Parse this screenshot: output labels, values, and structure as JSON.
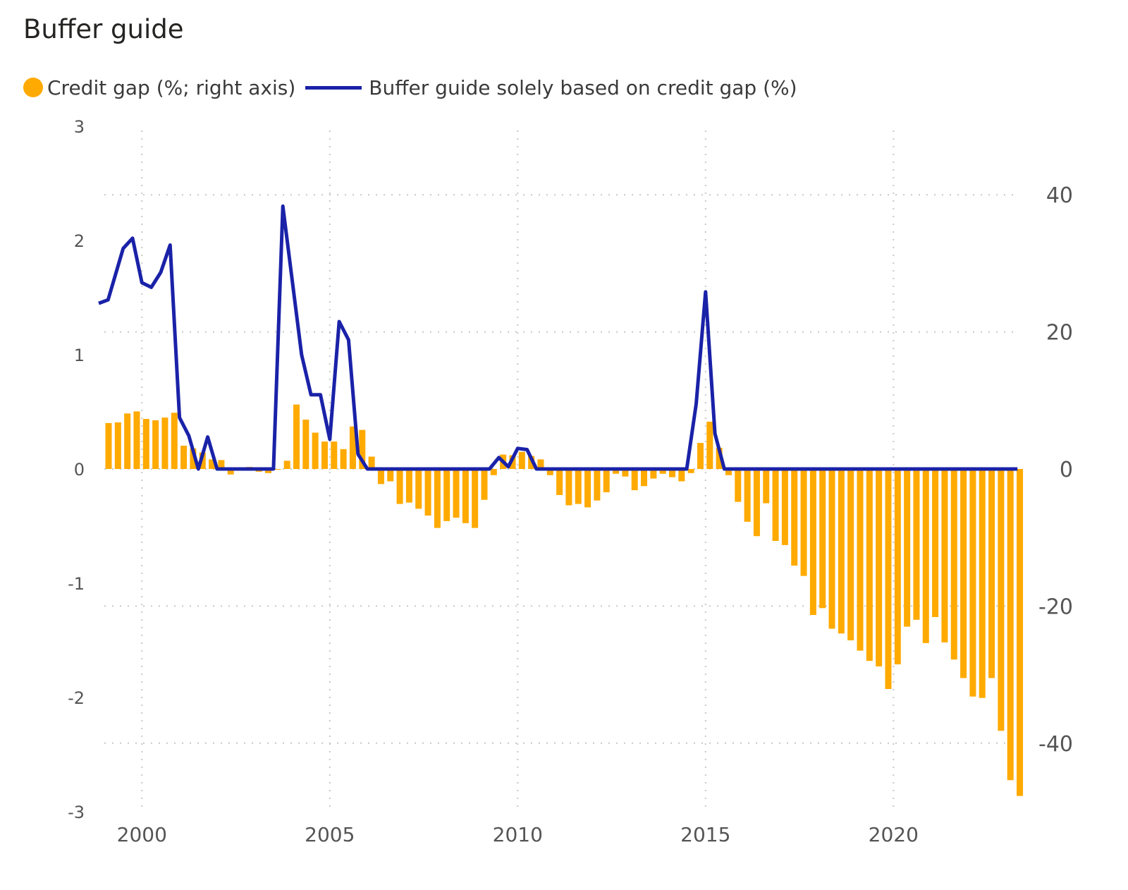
{
  "title": "Buffer guide",
  "legend": {
    "bar_label": "Credit gap (%; right axis)",
    "line_label": "Buffer guide solely based on credit gap (%)"
  },
  "colors": {
    "bar": "#FFAA00",
    "line": "#1A22A8",
    "grid": "#C8C8C8",
    "tick": "#555555"
  },
  "chart_data": {
    "type": "bar+line",
    "title": "Buffer guide",
    "x_ticks": [
      2000,
      2005,
      2010,
      2015,
      2020
    ],
    "x_range": [
      1998.85,
      2023.45
    ],
    "left_axis": {
      "ticks": [
        3,
        2,
        1,
        0,
        -1,
        -2,
        -3
      ],
      "range": [
        -3,
        3
      ]
    },
    "right_axis": {
      "ticks": [
        40,
        20,
        0,
        -20,
        -40
      ],
      "range": [
        -50,
        50
      ]
    },
    "series": [
      {
        "name": "Credit gap (%; right axis)",
        "type": "bar",
        "axis": "right",
        "x": [
          1999.0,
          1999.25,
          1999.5,
          1999.75,
          2000.0,
          2000.25,
          2000.5,
          2000.75,
          2001.0,
          2001.25,
          2001.5,
          2001.75,
          2002.0,
          2002.25,
          2002.5,
          2002.75,
          2003.0,
          2003.25,
          2003.5,
          2003.75,
          2004.0,
          2004.25,
          2004.5,
          2004.75,
          2005.0,
          2005.25,
          2005.5,
          2005.75,
          2006.0,
          2006.25,
          2006.5,
          2006.75,
          2007.0,
          2007.25,
          2007.5,
          2007.75,
          2008.0,
          2008.25,
          2008.5,
          2008.75,
          2009.0,
          2009.25,
          2009.5,
          2009.75,
          2010.0,
          2010.25,
          2010.5,
          2010.75,
          2011.0,
          2011.25,
          2011.5,
          2011.75,
          2012.0,
          2012.25,
          2012.5,
          2012.75,
          2013.0,
          2013.25,
          2013.5,
          2013.75,
          2014.0,
          2014.25,
          2014.5,
          2014.75,
          2015.0,
          2015.25,
          2015.5,
          2015.75,
          2016.0,
          2016.25,
          2016.5,
          2016.75,
          2017.0,
          2017.25,
          2017.5,
          2017.75,
          2018.0,
          2018.25,
          2018.5,
          2018.75,
          2019.0,
          2019.25,
          2019.5,
          2019.75,
          2020.0,
          2020.25,
          2020.5,
          2020.75,
          2021.0,
          2021.25,
          2021.5,
          2021.75,
          2022.0,
          2022.25,
          2022.5,
          2022.75,
          2023.0,
          2023.25
        ],
        "values": [
          6.7,
          6.8,
          8.1,
          8.4,
          7.3,
          7.1,
          7.5,
          8.2,
          3.4,
          3.0,
          2.4,
          1.4,
          1.3,
          -0.8,
          0.1,
          0.3,
          -0.4,
          -0.6,
          0,
          1.2,
          9.4,
          7.2,
          5.3,
          4.0,
          4.0,
          2.9,
          6.2,
          5.7,
          1.8,
          -2.2,
          -1.8,
          -5.1,
          -4.9,
          -5.8,
          -6.8,
          -8.6,
          -7.6,
          -7.1,
          -7.9,
          -8.6,
          -4.5,
          -0.9,
          2.1,
          2.0,
          2.5,
          1.9,
          1.4,
          -0.9,
          -3.8,
          -5.3,
          -5.1,
          -5.6,
          -4.6,
          -3.4,
          -0.7,
          -1.1,
          -3.1,
          -2.5,
          -1.4,
          -0.7,
          -1.2,
          -1.8,
          -0.6,
          3.8,
          6.9,
          3.1,
          -0.9,
          -4.8,
          -7.7,
          -9.8,
          -5.0,
          -10.5,
          -11.1,
          -14.1,
          -15.6,
          -21.3,
          -20.3,
          -23.3,
          -24.0,
          -25.0,
          -26.5,
          -28.0,
          -28.8,
          -32.1,
          -28.5,
          -23.0,
          -22.0,
          -25.4,
          -21.6,
          -25.3,
          -27.8,
          -30.5,
          -33.2,
          -33.4,
          -30.5,
          -38.2,
          -45.4,
          -47.7
        ]
      },
      {
        "name": "Buffer guide solely based on credit gap (%)",
        "type": "line",
        "axis": "left",
        "x": [
          1998.85,
          1999.1,
          1999.5,
          1999.75,
          2000.0,
          2000.25,
          2000.5,
          2000.75,
          2001.0,
          2001.25,
          2001.5,
          2001.75,
          2002.0,
          2002.25,
          2003.5,
          2003.75,
          2004.0,
          2004.25,
          2004.5,
          2004.75,
          2005.0,
          2005.25,
          2005.5,
          2005.75,
          2006.0,
          2009.25,
          2009.5,
          2009.75,
          2010.0,
          2010.25,
          2010.5,
          2014.5,
          2014.75,
          2015.0,
          2015.25,
          2015.5,
          2023.3
        ],
        "values": [
          1.45,
          1.48,
          1.93,
          2.02,
          1.63,
          1.59,
          1.72,
          1.96,
          0.45,
          0.29,
          0.0,
          0.28,
          0.0,
          0.0,
          0.0,
          2.3,
          1.65,
          1.0,
          0.65,
          0.65,
          0.26,
          1.29,
          1.13,
          0.13,
          0.0,
          0.0,
          0.1,
          0.02,
          0.18,
          0.17,
          0.0,
          0.0,
          0.57,
          1.55,
          0.31,
          0.0,
          0.0
        ]
      }
    ],
    "grid": true
  }
}
